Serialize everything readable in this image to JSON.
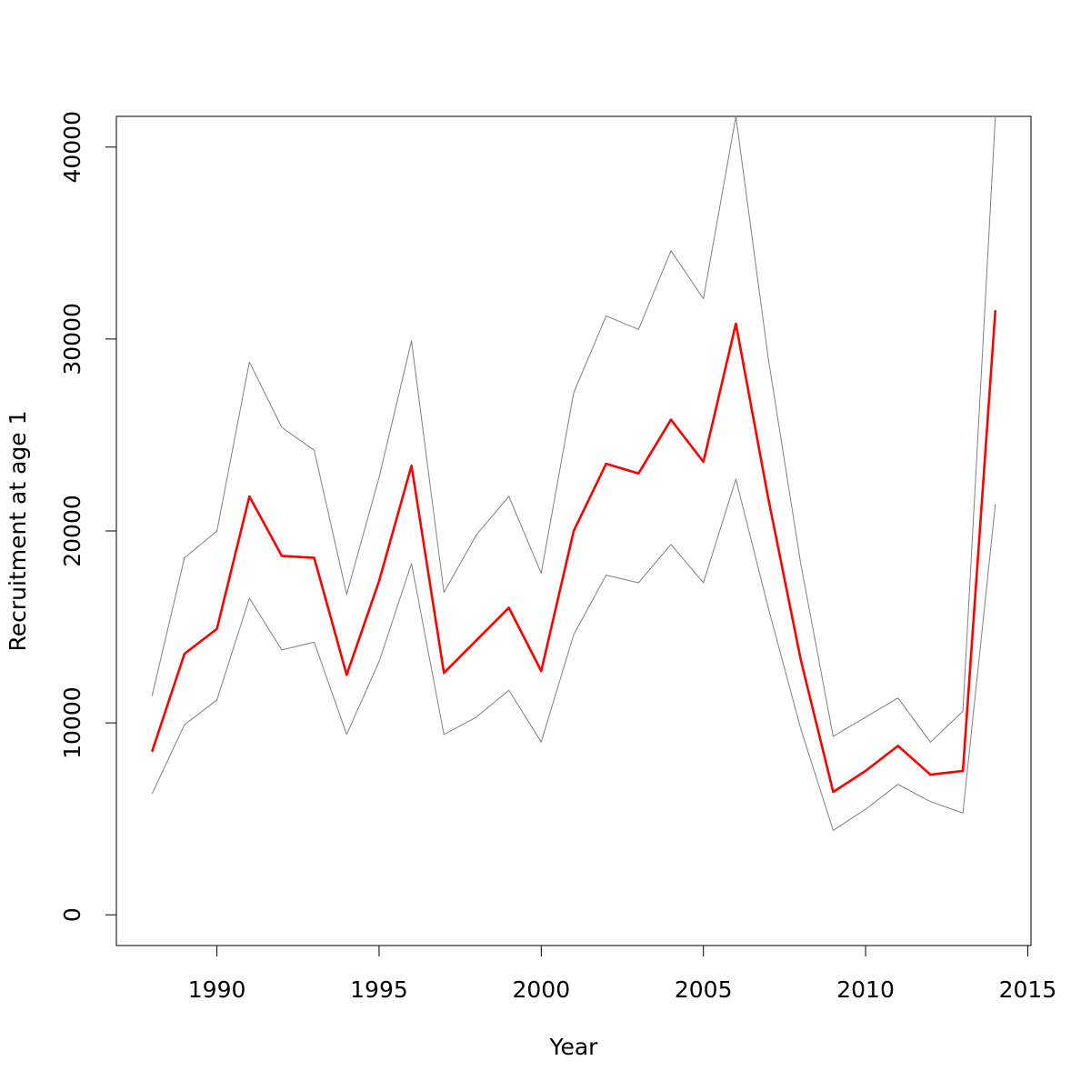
{
  "chart_data": {
    "type": "line",
    "title": "",
    "xlabel": "Year",
    "ylabel": "Recruitment at age 1",
    "xlim": [
      1986.9,
      2015.1
    ],
    "ylim": [
      -1600,
      41600
    ],
    "xticks": [
      1990,
      1995,
      2000,
      2005,
      2010,
      2015
    ],
    "xtick_labels": [
      "1990",
      "1995",
      "2000",
      "2005",
      "2010",
      "2015"
    ],
    "yticks": [
      0,
      10000,
      20000,
      30000,
      40000
    ],
    "ytick_labels": [
      "0",
      "10000",
      "20000",
      "30000",
      "40000"
    ],
    "grid": false,
    "legend": "none",
    "x": [
      1988,
      1989,
      1990,
      1991,
      1992,
      1993,
      1994,
      1995,
      1996,
      1997,
      1998,
      1999,
      2000,
      2001,
      2002,
      2003,
      2004,
      2005,
      2006,
      2007,
      2008,
      2009,
      2010,
      2011,
      2012,
      2013,
      2014
    ],
    "series": [
      {
        "role": "estimate",
        "color": "#ff0000",
        "values": [
          8500,
          13600,
          14900,
          21800,
          18700,
          18600,
          12500,
          17400,
          23400,
          12600,
          14300,
          16000,
          12700,
          20000,
          23500,
          23000,
          25800,
          23600,
          30800,
          21700,
          13300,
          6400,
          7500,
          8800,
          7300,
          7500,
          31500
        ]
      },
      {
        "role": "upper-bound",
        "color": "#808080",
        "values": [
          11400,
          18600,
          20000,
          28800,
          25400,
          24200,
          16700,
          22800,
          29900,
          16800,
          19800,
          21800,
          17800,
          27200,
          31200,
          30500,
          34600,
          32100,
          41600,
          29000,
          18300,
          9300,
          10300,
          11300,
          9000,
          10600,
          41600
        ]
      },
      {
        "role": "lower-bound",
        "color": "#808080",
        "values": [
          6300,
          9900,
          11200,
          16500,
          13800,
          14200,
          9400,
          13200,
          18300,
          9400,
          10300,
          11700,
          9000,
          14600,
          17700,
          17300,
          19300,
          17300,
          22700,
          16000,
          9700,
          4400,
          5500,
          6800,
          5900,
          5300,
          21400
        ]
      }
    ]
  }
}
